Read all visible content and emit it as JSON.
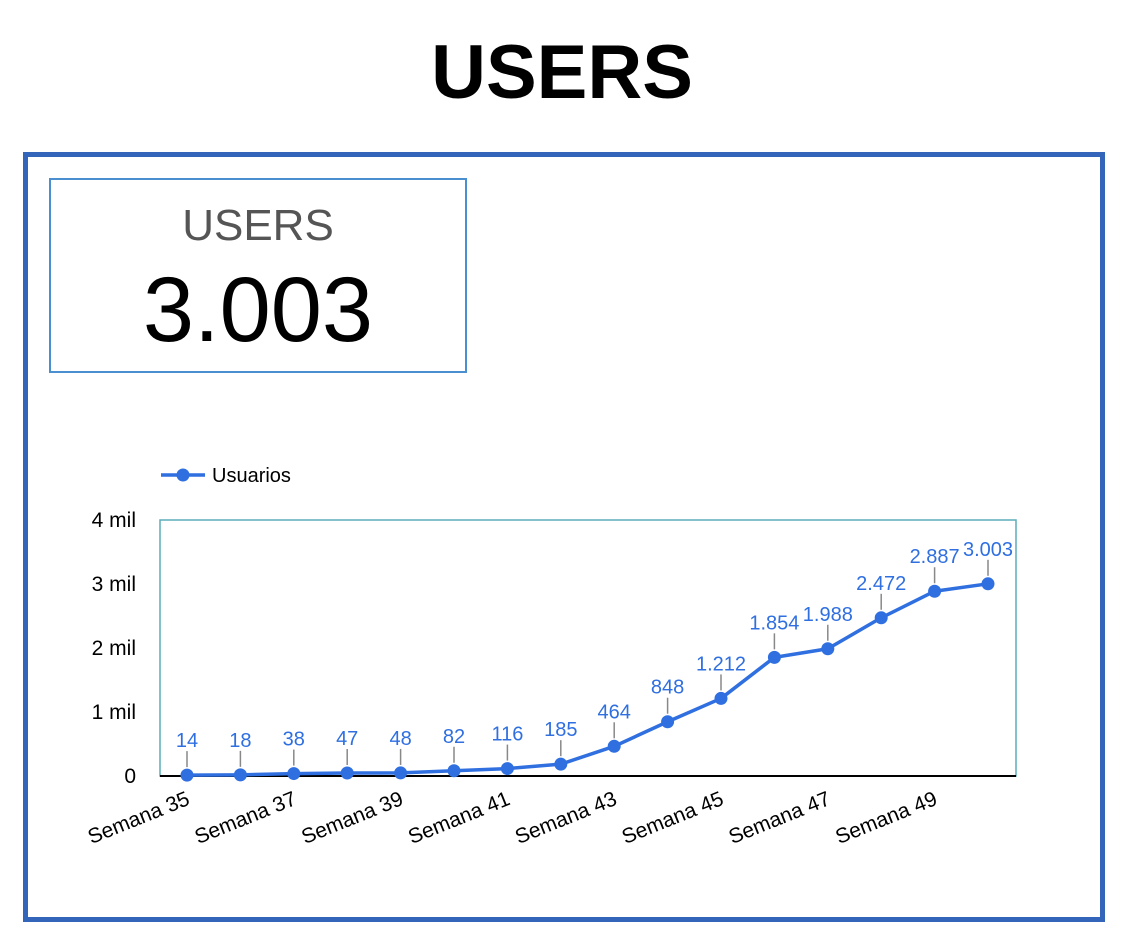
{
  "title": "USERS",
  "scorecard": {
    "label": "USERS",
    "value": "3.003"
  },
  "colors": {
    "frame": "#3366bb",
    "series": "#2f6fe0",
    "plot_border": "#5aaeb8",
    "leader": "#888888"
  },
  "chart_data": {
    "type": "line",
    "series": [
      {
        "name": "Usuarios",
        "values": [
          14,
          18,
          38,
          47,
          48,
          82,
          116,
          185,
          464,
          848,
          1212,
          1854,
          1988,
          2472,
          2887,
          3003
        ],
        "labels": [
          "14",
          "18",
          "38",
          "47",
          "48",
          "82",
          "116",
          "185",
          "464",
          "848",
          "1.212",
          "1.854",
          "1.988",
          "2.472",
          "2.887",
          "3.003"
        ]
      }
    ],
    "x_ticks": [
      "Semana 35",
      "Semana 37",
      "Semana 39",
      "Semana 41",
      "Semana 43",
      "Semana 45",
      "Semana 47",
      "Semana 49"
    ],
    "y_ticks": [
      "0",
      "1 mil",
      "2 mil",
      "3 mil",
      "4 mil"
    ],
    "ylim": [
      0,
      4000
    ],
    "legend": "top-left",
    "grid": false
  }
}
